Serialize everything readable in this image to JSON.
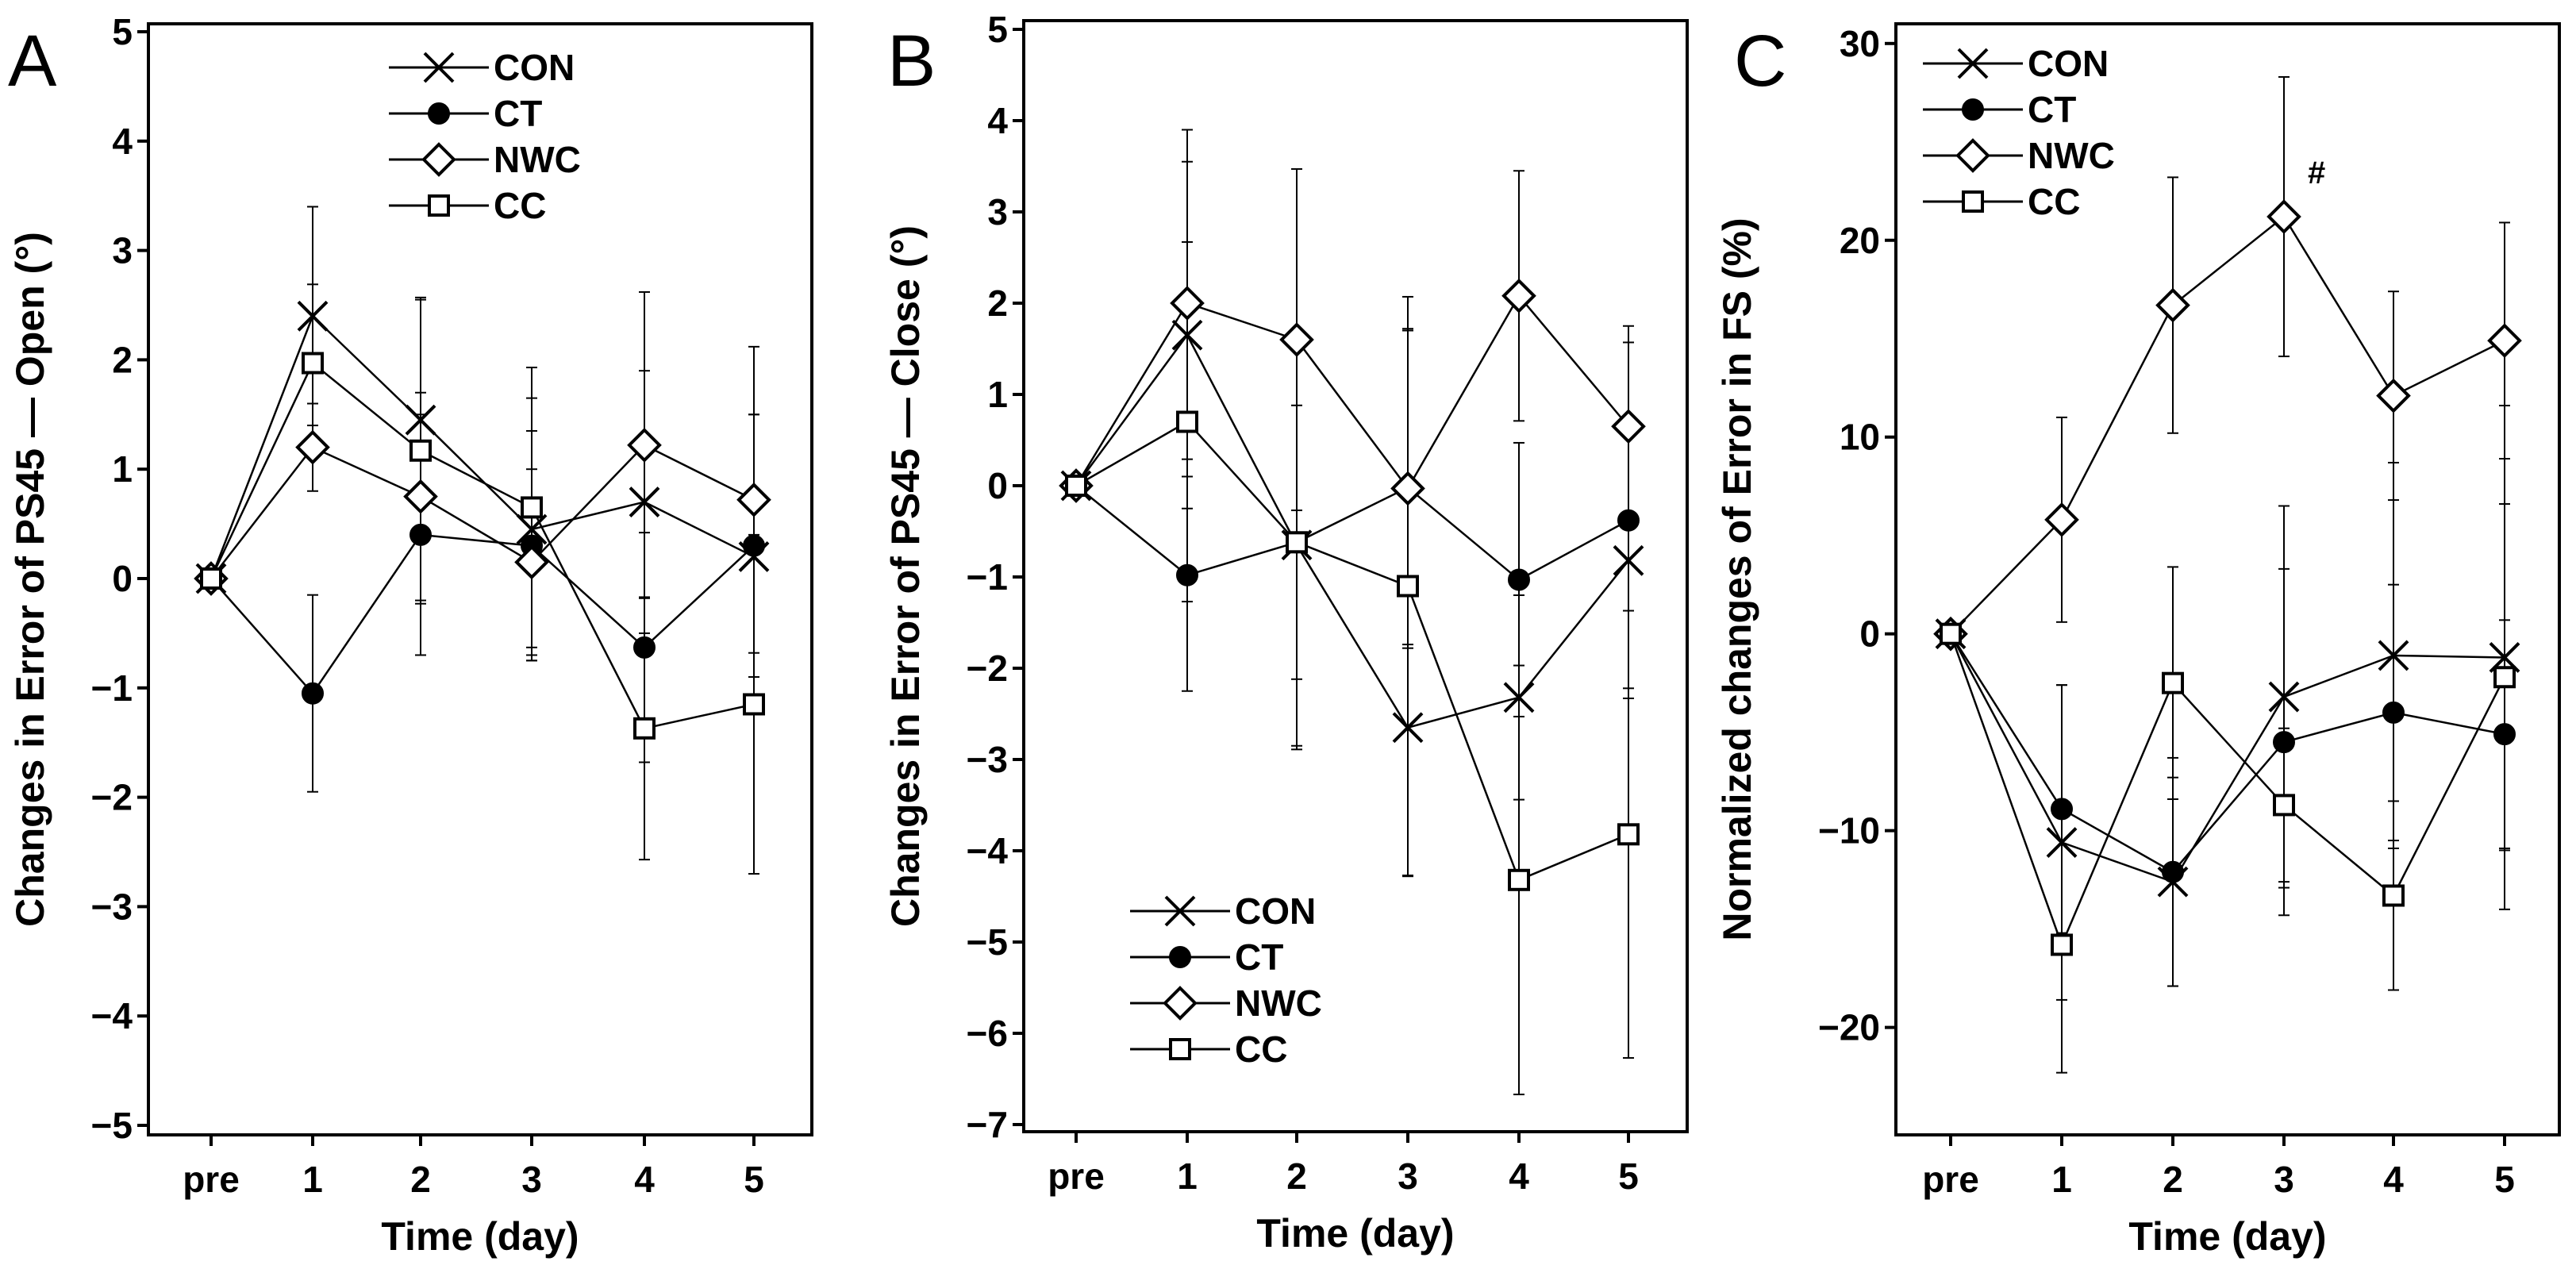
{
  "chart_data": [
    {
      "panel": "A",
      "type": "line",
      "ylabel": "Changes in Error of PS45 — Open (°)",
      "xlabel": "Time (day)",
      "categories": [
        "pre",
        "1",
        "2",
        "3",
        "4",
        "5"
      ],
      "ylim": [
        -5,
        5
      ],
      "yticks": [
        5,
        4,
        3,
        2,
        1,
        0,
        -1,
        -2,
        -3,
        -4,
        -5
      ],
      "ytick_labels": [
        "5",
        "4",
        "3",
        "2",
        "1",
        "0",
        "−1",
        "−2",
        "−3",
        "−4",
        "−5"
      ],
      "legend_position": "top-center",
      "series": [
        {
          "name": "CON",
          "marker": "x",
          "values": [
            0,
            2.4,
            1.45,
            0.45,
            0.7,
            0.2
          ],
          "errors": [
            0,
            1.0,
            1.1,
            1.2,
            1.2,
            1.3
          ]
        },
        {
          "name": "CT",
          "marker": "filled-circle",
          "values": [
            0,
            -1.05,
            0.4,
            0.3,
            -0.63,
            0.3
          ],
          "errors": [
            0,
            0.9,
            1.1,
            1.05,
            1.05,
            1.2
          ]
        },
        {
          "name": "NWC",
          "marker": "diamond",
          "values": [
            0,
            1.2,
            0.75,
            0.15,
            1.22,
            0.72
          ],
          "errors": [
            0,
            0.4,
            0.95,
            0.85,
            1.4,
            1.4
          ]
        },
        {
          "name": "CC",
          "marker": "square",
          "values": [
            0,
            1.97,
            1.17,
            0.65,
            -1.37,
            -1.15
          ],
          "errors": [
            0,
            0.72,
            1.4,
            1.28,
            1.2,
            1.55
          ]
        }
      ]
    },
    {
      "panel": "B",
      "type": "line",
      "ylabel": "Changes in Error of PS45 — Close (°)",
      "xlabel": "Time (day)",
      "categories": [
        "pre",
        "1",
        "2",
        "3",
        "4",
        "5"
      ],
      "ylim": [
        -7,
        5
      ],
      "yticks": [
        5,
        4,
        3,
        2,
        1,
        0,
        -1,
        -2,
        -3,
        -4,
        -5,
        -6,
        -7
      ],
      "ytick_labels": [
        "5",
        "4",
        "3",
        "2",
        "1",
        "0",
        "−1",
        "−2",
        "−3",
        "−4",
        "−5",
        "−6",
        "−7"
      ],
      "legend_position": "bottom-left",
      "series": [
        {
          "name": "CON",
          "marker": "x",
          "values": [
            0,
            1.65,
            -0.65,
            -2.65,
            -2.32,
            -0.82
          ],
          "errors": [
            0,
            1.9,
            2.2,
            1.63,
            1.12,
            1.4
          ]
        },
        {
          "name": "CT",
          "marker": "filled-circle",
          "values": [
            0,
            -0.98,
            -0.62,
            -0.02,
            -1.03,
            -0.38
          ],
          "errors": [
            0,
            1.27,
            1.5,
            1.72,
            1.5,
            1.95
          ]
        },
        {
          "name": "NWC",
          "marker": "diamond",
          "values": [
            0,
            2.0,
            1.6,
            -0.03,
            2.08,
            0.65
          ],
          "errors": [
            0,
            1.9,
            1.87,
            1.75,
            1.37,
            1.1
          ]
        },
        {
          "name": "CC",
          "marker": "square",
          "values": [
            0,
            0.7,
            -0.62,
            -1.1,
            -4.32,
            -3.82
          ],
          "errors": [
            0,
            1.97,
            2.27,
            3.17,
            2.35,
            2.45
          ]
        }
      ]
    },
    {
      "panel": "C",
      "type": "line",
      "ylabel": "Normalized changes of Error in FS (%)",
      "xlabel": "Time (day)",
      "categories": [
        "pre",
        "1",
        "2",
        "3",
        "4",
        "5"
      ],
      "ylim": [
        -25.5,
        31
      ],
      "yticks": [
        30,
        20,
        10,
        0,
        -10,
        -20
      ],
      "ytick_labels": [
        "30",
        "20",
        "10",
        "0",
        "−10",
        "−20"
      ],
      "legend_position": "top-left",
      "annotations": [
        {
          "text": "#",
          "category": "3",
          "value": 22.5
        }
      ],
      "series": [
        {
          "name": "CON",
          "marker": "x",
          "values": [
            0,
            -10.6,
            -12.6,
            -3.2,
            -1.1,
            -1.2
          ],
          "errors": [
            0,
            8.0,
            5.3,
            9.7,
            9.8,
            12.8
          ]
        },
        {
          "name": "CT",
          "marker": "filled-circle",
          "values": [
            0,
            -8.9,
            -12.1,
            -5.5,
            -4.0,
            -5.1
          ],
          "errors": [
            0,
            6.3,
            5.8,
            8.8,
            6.5,
            5.8
          ]
        },
        {
          "name": "NWC",
          "marker": "diamond",
          "values": [
            0,
            5.8,
            16.7,
            21.2,
            12.1,
            14.9
          ],
          "errors": [
            0,
            5.2,
            6.5,
            7.1,
            5.3,
            6.0
          ]
        },
        {
          "name": "CC",
          "marker": "square",
          "values": [
            0,
            -15.8,
            -2.5,
            -8.7,
            -13.3,
            -2.2
          ],
          "errors": [
            0,
            6.5,
            5.9,
            3.9,
            4.8,
            8.8
          ]
        }
      ]
    }
  ]
}
